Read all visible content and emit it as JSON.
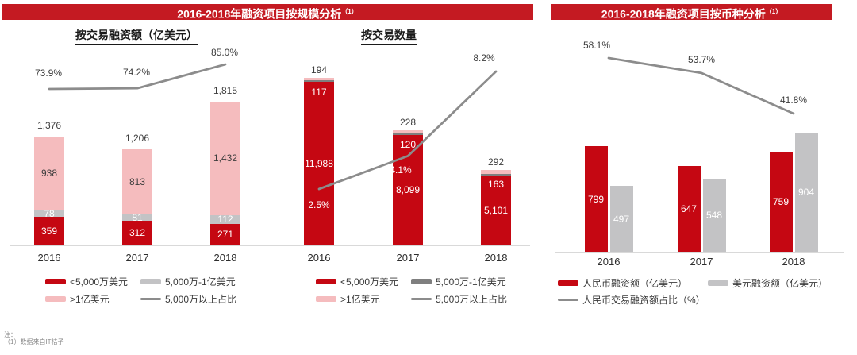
{
  "header_left": {
    "title": "2016-2018年融资项目按规模分析",
    "sup": "（1）"
  },
  "header_right": {
    "title": "2016-2018年融资项目按币种分析",
    "sup": "（1）"
  },
  "footnote": {
    "label": "注：",
    "line": "（1）数据来自IT桔子"
  },
  "colors": {
    "red": "#c50712",
    "pink": "#f5bcbe",
    "light_gray": "#c3c3c5",
    "dark_gray": "#7f7f7f",
    "line_gray": "#8c8c8c",
    "banner": "#c41a22"
  },
  "legends": {
    "scale": [
      [
        {
          "swatch": "red-bar",
          "label": "<5,000万美元"
        },
        {
          "swatch": "lightgray-bar",
          "label": "5,000万-1亿美元"
        }
      ],
      [
        {
          "swatch": "pink-bar",
          "label": ">1亿美元"
        },
        {
          "swatch": "gray-line",
          "label": "5,000万以上占比"
        }
      ]
    ],
    "count": [
      [
        {
          "swatch": "red-bar",
          "label": "<5,000万美元"
        },
        {
          "swatch": "darkgray-bar",
          "label": "5,000万-1亿美元"
        }
      ],
      [
        {
          "swatch": "pink-bar",
          "label": ">1亿美元"
        },
        {
          "swatch": "gray-line",
          "label": "5,000万以上占比"
        }
      ]
    ],
    "currency": [
      [
        {
          "swatch": "red-bar",
          "label": "人民币融资额（亿美元）"
        },
        {
          "swatch": "lightgray-bar",
          "label": "美元融资额（亿美元）"
        }
      ],
      [
        {
          "swatch": "gray-line",
          "label": "人民币交易融资额占比（%）"
        }
      ]
    ]
  },
  "chart_data": [
    {
      "type": "bar",
      "subtype": "stacked-with-line",
      "title": "按交易融资额（亿美元）",
      "categories": [
        "2016",
        "2017",
        "2018"
      ],
      "series": [
        {
          "name": "<5,000万美元",
          "values": [
            359,
            312,
            271
          ],
          "labels": [
            "359",
            "312",
            "271"
          ]
        },
        {
          "name": "5,000万-1亿美元",
          "values": [
            78,
            81,
            112
          ],
          "labels": [
            "78",
            "81",
            "112"
          ]
        },
        {
          "name": ">1亿美元",
          "values": [
            938,
            813,
            1432
          ],
          "labels": [
            "938",
            "813",
            "1,432"
          ]
        }
      ],
      "totals": {
        "values": [
          1376,
          1206,
          1815
        ],
        "labels": [
          "1,376",
          "1,206",
          "1,815"
        ]
      },
      "line": {
        "name": "5,000万以上占比",
        "values": [
          73.9,
          74.2,
          85.0
        ],
        "labels": [
          "73.9%",
          "74.2%",
          "85.0%"
        ]
      },
      "ylim": [
        0,
        2000
      ],
      "grid": false,
      "legend_position": "bottom"
    },
    {
      "type": "bar",
      "subtype": "stacked-with-line",
      "title": "按交易数量",
      "categories": [
        "2016",
        "2017",
        "2018"
      ],
      "series": [
        {
          "name": "<5,000万美元",
          "values": [
            11988,
            8099,
            5101
          ],
          "labels": [
            "11,988",
            "8,099",
            "5,101"
          ]
        },
        {
          "name": "5,000万-1亿美元",
          "values": [
            117,
            120,
            163
          ],
          "labels": [
            "117",
            "120",
            "163"
          ]
        },
        {
          "name": ">1亿美元",
          "values": [
            194,
            228,
            292
          ],
          "labels": [
            "194",
            "228",
            "292"
          ]
        }
      ],
      "line": {
        "name": "5,000万以上占比",
        "values": [
          2.5,
          4.1,
          8.2
        ],
        "labels": [
          "2.5%",
          "4.1%",
          "8.2%"
        ]
      },
      "ylim": [
        0,
        13000
      ],
      "grid": false,
      "legend_position": "bottom"
    },
    {
      "type": "bar",
      "subtype": "grouped-with-line",
      "title": "",
      "categories": [
        "2016",
        "2017",
        "2018"
      ],
      "series": [
        {
          "name": "人民币融资额（亿美元）",
          "values": [
            799,
            647,
            759
          ],
          "labels": [
            "799",
            "647",
            "759"
          ]
        },
        {
          "name": "美元融资额（亿美元）",
          "values": [
            497,
            548,
            904
          ],
          "labels": [
            "497",
            "548",
            "904"
          ]
        }
      ],
      "line": {
        "name": "人民币交易融资额占比（%）",
        "values": [
          58.1,
          53.7,
          41.8
        ],
        "labels": [
          "58.1%",
          "53.7%",
          "41.8%"
        ]
      },
      "ylim": [
        0,
        1000
      ],
      "grid": false,
      "legend_position": "bottom"
    }
  ]
}
